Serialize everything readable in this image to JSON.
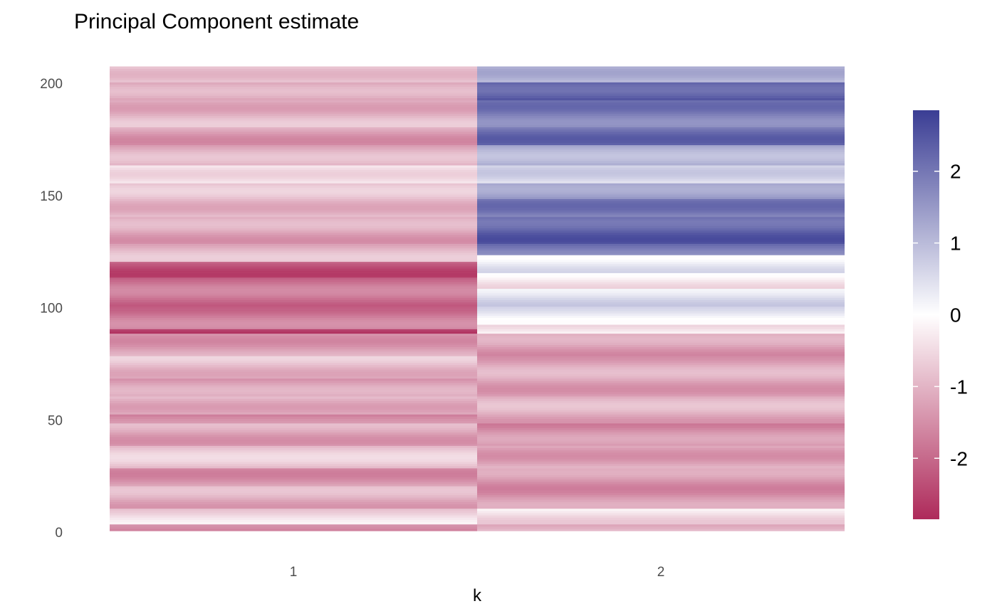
{
  "chart_data": {
    "type": "heatmap",
    "title": "Principal Component estimate",
    "xlabel": "k",
    "ylabel": "",
    "x_categories": [
      "1",
      "2"
    ],
    "y_range": [
      1,
      207
    ],
    "ylim": [
      0,
      207
    ],
    "y_ticks": [
      0,
      50,
      100,
      150,
      200
    ],
    "grid": false,
    "legend": {
      "position": "right",
      "type": "colorbar",
      "title": "",
      "range": [
        -2.85,
        2.85
      ],
      "ticks": [
        2,
        1,
        0,
        -1,
        -2
      ],
      "tick_labels": [
        "2",
        "1",
        "0",
        "-1",
        "-2"
      ]
    },
    "colors": {
      "low": "#ae2a5a",
      "mid": "#ffffff",
      "high": "#3a3d94"
    },
    "series": [
      {
        "k": "1",
        "segments": [
          {
            "y_from": 1,
            "y_to": 3,
            "value": -1.8
          },
          {
            "y_from": 4,
            "y_to": 10,
            "value": -0.5
          },
          {
            "y_from": 11,
            "y_to": 20,
            "value": -1.1
          },
          {
            "y_from": 21,
            "y_to": 28,
            "value": -1.4
          },
          {
            "y_from": 29,
            "y_to": 38,
            "value": -0.8
          },
          {
            "y_from": 39,
            "y_to": 48,
            "value": -1.2
          },
          {
            "y_from": 49,
            "y_to": 52,
            "value": -1.7
          },
          {
            "y_from": 53,
            "y_to": 60,
            "value": -1.0
          },
          {
            "y_from": 61,
            "y_to": 68,
            "value": -1.3
          },
          {
            "y_from": 69,
            "y_to": 78,
            "value": -0.9
          },
          {
            "y_from": 79,
            "y_to": 88,
            "value": -1.3
          },
          {
            "y_from": 89,
            "y_to": 90,
            "value": -2.7
          },
          {
            "y_from": 91,
            "y_to": 100,
            "value": -1.8
          },
          {
            "y_from": 101,
            "y_to": 113,
            "value": -1.9
          },
          {
            "y_from": 114,
            "y_to": 120,
            "value": -2.3
          },
          {
            "y_from": 121,
            "y_to": 128,
            "value": -1.0
          },
          {
            "y_from": 129,
            "y_to": 140,
            "value": -1.2
          },
          {
            "y_from": 141,
            "y_to": 155,
            "value": -0.9
          },
          {
            "y_from": 156,
            "y_to": 163,
            "value": -0.3
          },
          {
            "y_from": 164,
            "y_to": 172,
            "value": -1.1
          },
          {
            "y_from": 173,
            "y_to": 180,
            "value": -1.3
          },
          {
            "y_from": 181,
            "y_to": 192,
            "value": -1.0
          },
          {
            "y_from": 193,
            "y_to": 200,
            "value": -1.2
          },
          {
            "y_from": 201,
            "y_to": 207,
            "value": -0.7
          }
        ]
      },
      {
        "k": "2",
        "segments": [
          {
            "y_from": 1,
            "y_to": 3,
            "value": -0.9
          },
          {
            "y_from": 4,
            "y_to": 10,
            "value": -0.4
          },
          {
            "y_from": 11,
            "y_to": 28,
            "value": -1.4
          },
          {
            "y_from": 29,
            "y_to": 38,
            "value": -1.2
          },
          {
            "y_from": 39,
            "y_to": 48,
            "value": -1.5
          },
          {
            "y_from": 49,
            "y_to": 60,
            "value": -1.1
          },
          {
            "y_from": 61,
            "y_to": 78,
            "value": -1.2
          },
          {
            "y_from": 79,
            "y_to": 88,
            "value": -1.3
          },
          {
            "y_from": 89,
            "y_to": 92,
            "value": -0.3
          },
          {
            "y_from": 93,
            "y_to": 100,
            "value": 0.3
          },
          {
            "y_from": 101,
            "y_to": 108,
            "value": 0.5
          },
          {
            "y_from": 109,
            "y_to": 115,
            "value": -0.3
          },
          {
            "y_from": 116,
            "y_to": 123,
            "value": 0.3
          },
          {
            "y_from": 124,
            "y_to": 128,
            "value": 2.0
          },
          {
            "y_from": 129,
            "y_to": 140,
            "value": 2.3
          },
          {
            "y_from": 141,
            "y_to": 148,
            "value": 1.9
          },
          {
            "y_from": 149,
            "y_to": 155,
            "value": 1.5
          },
          {
            "y_from": 156,
            "y_to": 163,
            "value": 0.5
          },
          {
            "y_from": 164,
            "y_to": 172,
            "value": 1.2
          },
          {
            "y_from": 173,
            "y_to": 180,
            "value": 2.1
          },
          {
            "y_from": 181,
            "y_to": 192,
            "value": 1.9
          },
          {
            "y_from": 193,
            "y_to": 200,
            "value": 2.4
          },
          {
            "y_from": 201,
            "y_to": 207,
            "value": 1.0
          }
        ]
      }
    ]
  }
}
